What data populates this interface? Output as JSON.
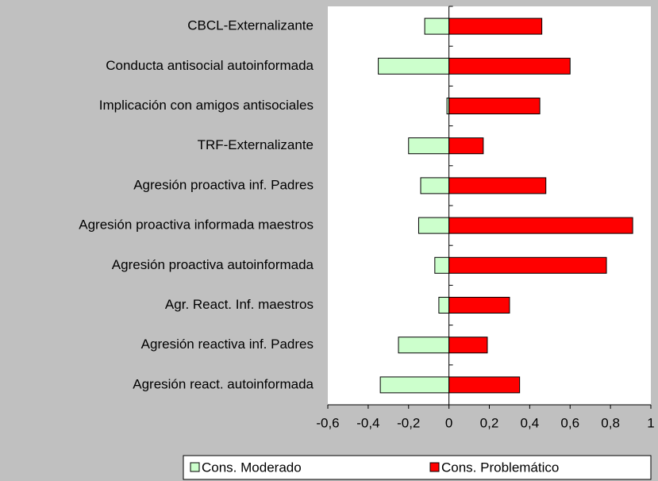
{
  "chart_data": {
    "type": "hbar",
    "categories": [
      "CBCL-Externalizante",
      "Conducta antisocial autoinformada",
      "Implicación con amigos antisociales",
      "TRF-Externalizante",
      "Agresión proactiva inf. Padres",
      "Agresión proactiva informada maestros",
      "Agresión proactiva autoinformada",
      "Agr. React. Inf. maestros",
      "Agresión reactiva inf. Padres",
      "Agresión react. autoinformada"
    ],
    "series": [
      {
        "name": "Cons. Moderado",
        "color": "#ccffcc",
        "values": [
          -0.12,
          -0.35,
          -0.01,
          -0.2,
          -0.14,
          -0.15,
          -0.07,
          -0.05,
          -0.25,
          -0.34
        ]
      },
      {
        "name": "Cons. Problemático",
        "color": "#ff0000",
        "values": [
          0.46,
          0.6,
          0.45,
          0.17,
          0.48,
          0.91,
          0.78,
          0.3,
          0.19,
          0.35
        ]
      }
    ],
    "xlim": [
      -0.6,
      1
    ],
    "xticks": [
      {
        "value": -0.6,
        "label": "-0,6"
      },
      {
        "value": -0.4,
        "label": "-0,4"
      },
      {
        "value": -0.2,
        "label": "-0,2"
      },
      0,
      {
        "value": 0.2,
        "label": "0,2"
      },
      {
        "value": 0.4,
        "label": "0,4"
      },
      {
        "value": 0.6,
        "label": "0,6"
      },
      {
        "value": 0.8,
        "label": "0,8"
      },
      1
    ],
    "legend": "bottom"
  }
}
